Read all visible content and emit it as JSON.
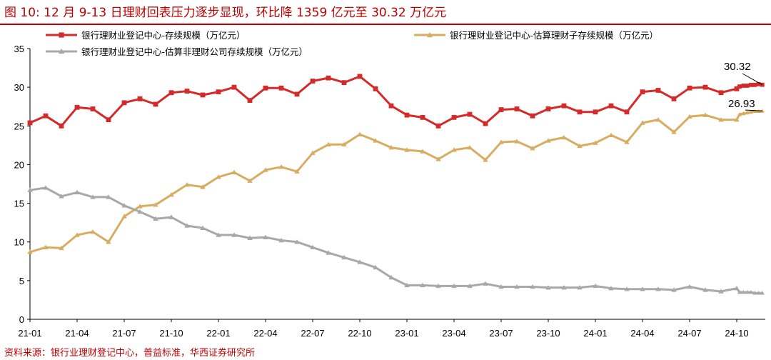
{
  "figure": {
    "title": "图 10:  12 月 9-13 日理财回表压力逐步显现，环比降 1359 亿元至 30.32 万亿元",
    "source": "资料来源：银行业理财登记中心，普益标准，华西证券研究所"
  },
  "chart_data": {
    "type": "line",
    "ylim": [
      0,
      35
    ],
    "yticks": [
      0,
      5,
      10,
      15,
      20,
      25,
      30,
      35
    ],
    "xtick_labels": [
      "21-01",
      "21-04",
      "21-07",
      "21-10",
      "22-01",
      "22-04",
      "22-07",
      "22-10",
      "23-01",
      "23-04",
      "23-07",
      "23-10",
      "24-01",
      "24-04",
      "24-07",
      "24-10"
    ],
    "x_monthly_points": 46,
    "x_weekly_points": 7,
    "legend_position": "top",
    "series": [
      {
        "name": "银行理财业登记中心-存续规模（万亿元）",
        "color": "#d42a2a",
        "marker": "square",
        "values": [
          25.4,
          26.3,
          25.0,
          27.4,
          27.2,
          25.8,
          28.0,
          28.5,
          27.8,
          29.3,
          29.5,
          29.0,
          29.4,
          30.0,
          28.3,
          29.9,
          29.9,
          29.1,
          30.8,
          31.2,
          30.6,
          31.4,
          29.8,
          27.6,
          26.4,
          26.1,
          25.0,
          26.1,
          26.5,
          25.3,
          27.1,
          27.2,
          26.3,
          27.2,
          27.6,
          26.8,
          26.8,
          27.6,
          26.8,
          29.4,
          29.6,
          28.5,
          29.9,
          30.0,
          29.3,
          29.8
        ],
        "weekly": [
          30.1,
          30.2,
          30.2,
          30.3,
          30.3,
          30.4,
          30.32
        ]
      },
      {
        "name": "银行理财业登记中心-估算理财子存续规模（万亿元）",
        "color": "#d8ad62",
        "marker": "triangle",
        "values": [
          8.7,
          9.3,
          9.2,
          10.9,
          11.3,
          10.0,
          13.3,
          14.6,
          14.8,
          16.1,
          17.4,
          17.1,
          18.4,
          19.0,
          17.9,
          19.3,
          19.7,
          19.1,
          21.5,
          22.6,
          22.6,
          23.9,
          23.1,
          22.2,
          21.9,
          21.7,
          20.7,
          21.9,
          22.2,
          20.6,
          22.9,
          23.0,
          22.1,
          23.1,
          23.5,
          22.4,
          22.8,
          23.8,
          22.9,
          25.4,
          25.8,
          24.2,
          26.2,
          26.4,
          25.8,
          25.8
        ],
        "weekly": [
          26.5,
          26.6,
          26.7,
          26.8,
          26.9,
          26.9,
          26.93
        ]
      },
      {
        "name": "银行理财业登记中心-估算非理财公司存续规模（万亿元）",
        "color": "#a8a8a8",
        "marker": "triangle",
        "values": [
          16.7,
          17.0,
          15.9,
          16.4,
          15.8,
          15.8,
          14.7,
          13.9,
          13.0,
          13.2,
          12.1,
          11.8,
          10.9,
          10.9,
          10.5,
          10.6,
          10.2,
          10.0,
          9.3,
          8.6,
          8.0,
          7.4,
          6.7,
          5.4,
          4.4,
          4.4,
          4.3,
          4.3,
          4.3,
          4.6,
          4.2,
          4.2,
          4.2,
          4.1,
          4.1,
          4.1,
          4.3,
          4.0,
          3.9,
          3.9,
          3.9,
          3.8,
          4.2,
          3.8,
          3.6,
          4.0
        ],
        "weekly": [
          3.5,
          3.5,
          3.5,
          3.5,
          3.4,
          3.4,
          3.4
        ]
      }
    ],
    "annotations": [
      {
        "text": "30.32",
        "series": 0
      },
      {
        "text": "26.93",
        "series": 1
      }
    ]
  }
}
